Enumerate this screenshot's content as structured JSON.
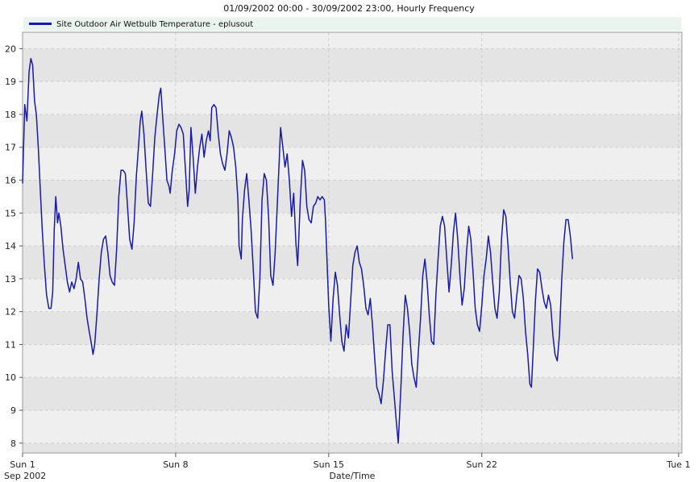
{
  "chart_data": {
    "type": "line",
    "title": "01/09/2002 00:00 - 30/09/2002 23:00, Hourly Frequency",
    "xlabel": "Date/Time",
    "ylabel": "",
    "ylim": [
      7.7,
      20.5
    ],
    "xlim": [
      0,
      30.15
    ],
    "yticks": [
      8,
      9,
      10,
      11,
      12,
      13,
      14,
      15,
      16,
      17,
      18,
      19,
      20
    ],
    "xticks": [
      {
        "x": 0,
        "label": "Sun 1",
        "sublabel": "Sep 2002"
      },
      {
        "x": 7,
        "label": "Sun 8",
        "sublabel": ""
      },
      {
        "x": 14,
        "label": "Sun 15",
        "sublabel": ""
      },
      {
        "x": 21,
        "label": "Sun 22",
        "sublabel": ""
      },
      {
        "x": 30,
        "label": "Tue 1",
        "sublabel": ""
      }
    ],
    "grid": true,
    "legend_position": "top-left",
    "colors": {
      "series": "#1a1aa8",
      "band_dark": "#e4e4e4",
      "band_light": "#efefef",
      "legend_bg": "#eaf4ee"
    },
    "series": [
      {
        "name": "Site Outdoor Air Wetbulb Temperature - eplusout",
        "points": [
          [
            0.0,
            15.9
          ],
          [
            0.1,
            18.3
          ],
          [
            0.2,
            17.8
          ],
          [
            0.3,
            19.3
          ],
          [
            0.38,
            19.7
          ],
          [
            0.46,
            19.5
          ],
          [
            0.55,
            18.4
          ],
          [
            0.63,
            18.0
          ],
          [
            0.72,
            17.0
          ],
          [
            0.82,
            15.6
          ],
          [
            0.9,
            14.5
          ],
          [
            1.0,
            13.4
          ],
          [
            1.1,
            12.5
          ],
          [
            1.2,
            12.1
          ],
          [
            1.3,
            12.1
          ],
          [
            1.38,
            12.6
          ],
          [
            1.45,
            14.5
          ],
          [
            1.52,
            15.5
          ],
          [
            1.6,
            14.7
          ],
          [
            1.66,
            15.0
          ],
          [
            1.75,
            14.6
          ],
          [
            1.85,
            13.9
          ],
          [
            1.95,
            13.4
          ],
          [
            2.05,
            12.9
          ],
          [
            2.15,
            12.6
          ],
          [
            2.25,
            12.9
          ],
          [
            2.35,
            12.7
          ],
          [
            2.45,
            13.0
          ],
          [
            2.55,
            13.5
          ],
          [
            2.65,
            13.0
          ],
          [
            2.75,
            12.9
          ],
          [
            2.85,
            12.4
          ],
          [
            2.95,
            11.8
          ],
          [
            3.05,
            11.4
          ],
          [
            3.15,
            11.0
          ],
          [
            3.22,
            10.7
          ],
          [
            3.3,
            11.0
          ],
          [
            3.4,
            11.9
          ],
          [
            3.5,
            13.0
          ],
          [
            3.6,
            13.8
          ],
          [
            3.7,
            14.2
          ],
          [
            3.8,
            14.3
          ],
          [
            3.9,
            13.8
          ],
          [
            4.0,
            13.1
          ],
          [
            4.1,
            12.9
          ],
          [
            4.2,
            12.8
          ],
          [
            4.3,
            13.9
          ],
          [
            4.4,
            15.5
          ],
          [
            4.5,
            16.3
          ],
          [
            4.6,
            16.3
          ],
          [
            4.7,
            16.2
          ],
          [
            4.8,
            15.2
          ],
          [
            4.9,
            14.2
          ],
          [
            5.0,
            13.9
          ],
          [
            5.1,
            14.7
          ],
          [
            5.2,
            16.1
          ],
          [
            5.3,
            17.0
          ],
          [
            5.38,
            17.8
          ],
          [
            5.45,
            18.1
          ],
          [
            5.55,
            17.4
          ],
          [
            5.65,
            16.3
          ],
          [
            5.75,
            15.3
          ],
          [
            5.85,
            15.2
          ],
          [
            5.95,
            16.2
          ],
          [
            6.05,
            17.3
          ],
          [
            6.15,
            18.0
          ],
          [
            6.25,
            18.6
          ],
          [
            6.32,
            18.8
          ],
          [
            6.4,
            18.0
          ],
          [
            6.5,
            17.0
          ],
          [
            6.6,
            16.0
          ],
          [
            6.7,
            15.8
          ],
          [
            6.75,
            15.6
          ],
          [
            6.85,
            16.3
          ],
          [
            6.95,
            16.8
          ],
          [
            7.05,
            17.5
          ],
          [
            7.15,
            17.7
          ],
          [
            7.25,
            17.6
          ],
          [
            7.35,
            17.4
          ],
          [
            7.45,
            16.3
          ],
          [
            7.55,
            15.2
          ],
          [
            7.62,
            15.7
          ],
          [
            7.7,
            17.6
          ],
          [
            7.8,
            16.7
          ],
          [
            7.9,
            15.6
          ],
          [
            8.0,
            16.4
          ],
          [
            8.1,
            17.0
          ],
          [
            8.2,
            17.4
          ],
          [
            8.3,
            16.7
          ],
          [
            8.4,
            17.2
          ],
          [
            8.5,
            17.5
          ],
          [
            8.58,
            17.2
          ],
          [
            8.65,
            18.2
          ],
          [
            8.75,
            18.3
          ],
          [
            8.85,
            18.2
          ],
          [
            8.95,
            17.4
          ],
          [
            9.05,
            16.8
          ],
          [
            9.15,
            16.5
          ],
          [
            9.25,
            16.3
          ],
          [
            9.35,
            16.8
          ],
          [
            9.45,
            17.5
          ],
          [
            9.55,
            17.3
          ],
          [
            9.65,
            17.0
          ],
          [
            9.75,
            16.4
          ],
          [
            9.85,
            15.4
          ],
          [
            9.9,
            14.0
          ],
          [
            10.0,
            13.6
          ],
          [
            10.05,
            14.8
          ],
          [
            10.15,
            15.7
          ],
          [
            10.25,
            16.2
          ],
          [
            10.35,
            15.4
          ],
          [
            10.45,
            14.5
          ],
          [
            10.55,
            13.3
          ],
          [
            10.65,
            12.0
          ],
          [
            10.75,
            11.8
          ],
          [
            10.85,
            13.0
          ],
          [
            10.95,
            15.4
          ],
          [
            11.05,
            16.2
          ],
          [
            11.15,
            16.0
          ],
          [
            11.25,
            14.9
          ],
          [
            11.35,
            13.1
          ],
          [
            11.45,
            12.8
          ],
          [
            11.55,
            13.8
          ],
          [
            11.65,
            15.3
          ],
          [
            11.75,
            16.8
          ],
          [
            11.8,
            17.6
          ],
          [
            11.9,
            17.0
          ],
          [
            12.0,
            16.4
          ],
          [
            12.1,
            16.8
          ],
          [
            12.2,
            16.0
          ],
          [
            12.3,
            14.9
          ],
          [
            12.4,
            15.6
          ],
          [
            12.5,
            14.1
          ],
          [
            12.58,
            13.4
          ],
          [
            12.7,
            15.4
          ],
          [
            12.8,
            16.6
          ],
          [
            12.9,
            16.3
          ],
          [
            13.0,
            15.2
          ],
          [
            13.1,
            14.8
          ],
          [
            13.2,
            14.7
          ],
          [
            13.3,
            15.2
          ],
          [
            13.4,
            15.3
          ],
          [
            13.5,
            15.5
          ],
          [
            13.6,
            15.4
          ],
          [
            13.7,
            15.5
          ],
          [
            13.8,
            15.4
          ],
          [
            13.85,
            14.8
          ],
          [
            14.0,
            12.2
          ],
          [
            14.1,
            11.1
          ],
          [
            14.2,
            12.4
          ],
          [
            14.3,
            13.2
          ],
          [
            14.4,
            12.8
          ],
          [
            14.5,
            11.9
          ],
          [
            14.6,
            11.1
          ],
          [
            14.7,
            10.8
          ],
          [
            14.8,
            11.6
          ],
          [
            14.9,
            11.2
          ],
          [
            15.0,
            12.3
          ],
          [
            15.1,
            13.4
          ],
          [
            15.2,
            13.8
          ],
          [
            15.3,
            14.0
          ],
          [
            15.4,
            13.5
          ],
          [
            15.5,
            13.3
          ],
          [
            15.6,
            12.8
          ],
          [
            15.7,
            12.1
          ],
          [
            15.8,
            11.9
          ],
          [
            15.9,
            12.4
          ],
          [
            16.0,
            11.6
          ],
          [
            16.1,
            10.6
          ],
          [
            16.2,
            9.7
          ],
          [
            16.3,
            9.5
          ],
          [
            16.4,
            9.2
          ],
          [
            16.5,
            9.9
          ],
          [
            16.6,
            10.8
          ],
          [
            16.7,
            11.6
          ],
          [
            16.8,
            11.6
          ],
          [
            16.9,
            10.2
          ],
          [
            17.0,
            9.4
          ],
          [
            17.1,
            8.6
          ],
          [
            17.18,
            8.0
          ],
          [
            17.3,
            9.7
          ],
          [
            17.4,
            11.3
          ],
          [
            17.5,
            12.5
          ],
          [
            17.6,
            12.1
          ],
          [
            17.7,
            11.4
          ],
          [
            17.8,
            10.4
          ],
          [
            17.9,
            10.0
          ],
          [
            18.0,
            9.7
          ],
          [
            18.1,
            10.8
          ],
          [
            18.2,
            11.8
          ],
          [
            18.3,
            13.1
          ],
          [
            18.4,
            13.6
          ],
          [
            18.5,
            12.9
          ],
          [
            18.6,
            11.9
          ],
          [
            18.7,
            11.1
          ],
          [
            18.8,
            11.0
          ],
          [
            18.9,
            12.5
          ],
          [
            19.0,
            13.6
          ],
          [
            19.1,
            14.6
          ],
          [
            19.2,
            14.9
          ],
          [
            19.3,
            14.6
          ],
          [
            19.4,
            13.6
          ],
          [
            19.5,
            12.6
          ],
          [
            19.6,
            13.4
          ],
          [
            19.7,
            14.4
          ],
          [
            19.8,
            15.0
          ],
          [
            19.9,
            14.2
          ],
          [
            20.0,
            13.1
          ],
          [
            20.1,
            12.2
          ],
          [
            20.2,
            12.7
          ],
          [
            20.3,
            13.8
          ],
          [
            20.4,
            14.6
          ],
          [
            20.5,
            14.2
          ],
          [
            20.6,
            13.2
          ],
          [
            20.7,
            12.1
          ],
          [
            20.8,
            11.6
          ],
          [
            20.9,
            11.4
          ],
          [
            21.0,
            12.2
          ],
          [
            21.1,
            13.1
          ],
          [
            21.2,
            13.6
          ],
          [
            21.3,
            14.3
          ],
          [
            21.4,
            13.8
          ],
          [
            21.5,
            12.9
          ],
          [
            21.6,
            12.1
          ],
          [
            21.7,
            11.8
          ],
          [
            21.8,
            12.6
          ],
          [
            21.9,
            14.2
          ],
          [
            22.0,
            15.1
          ],
          [
            22.1,
            14.9
          ],
          [
            22.2,
            14.0
          ],
          [
            22.3,
            12.9
          ],
          [
            22.4,
            12.0
          ],
          [
            22.5,
            11.8
          ],
          [
            22.6,
            12.5
          ],
          [
            22.7,
            13.1
          ],
          [
            22.8,
            13.0
          ],
          [
            22.9,
            12.4
          ],
          [
            23.0,
            11.4
          ],
          [
            23.1,
            10.7
          ],
          [
            23.2,
            9.8
          ],
          [
            23.27,
            9.7
          ],
          [
            23.35,
            10.8
          ],
          [
            23.45,
            12.3
          ],
          [
            23.55,
            13.3
          ],
          [
            23.65,
            13.2
          ],
          [
            23.75,
            12.7
          ],
          [
            23.85,
            12.3
          ],
          [
            23.95,
            12.1
          ],
          [
            24.05,
            12.5
          ],
          [
            24.15,
            12.2
          ],
          [
            24.25,
            11.3
          ],
          [
            24.35,
            10.7
          ],
          [
            24.45,
            10.5
          ],
          [
            24.55,
            11.3
          ],
          [
            24.65,
            12.9
          ],
          [
            24.75,
            14.1
          ],
          [
            24.85,
            14.8
          ],
          [
            24.95,
            14.8
          ],
          [
            25.05,
            14.3
          ],
          [
            25.15,
            13.6
          ]
        ]
      }
    ]
  }
}
